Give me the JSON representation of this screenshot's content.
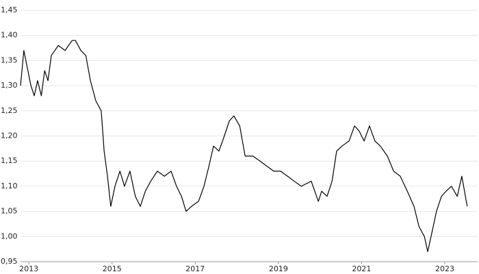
{
  "chart_data": {
    "type": "line",
    "x": [
      2012.8,
      2012.88,
      2013.05,
      2013.13,
      2013.21,
      2013.3,
      2013.38,
      2013.46,
      2013.54,
      2013.71,
      2013.87,
      2014.04,
      2014.12,
      2014.25,
      2014.37,
      2014.48,
      2014.61,
      2014.74,
      2014.81,
      2014.89,
      2014.97,
      2015.07,
      2015.19,
      2015.3,
      2015.43,
      2015.56,
      2015.68,
      2015.8,
      2015.93,
      2016.09,
      2016.26,
      2016.42,
      2016.55,
      2016.67,
      2016.78,
      2016.91,
      2017.08,
      2017.21,
      2017.33,
      2017.44,
      2017.57,
      2017.7,
      2017.82,
      2017.93,
      2018.07,
      2018.2,
      2018.39,
      2018.56,
      2018.72,
      2018.89,
      2019.05,
      2019.22,
      2019.38,
      2019.55,
      2019.79,
      2019.96,
      2020.04,
      2020.17,
      2020.29,
      2020.4,
      2020.53,
      2020.7,
      2020.83,
      2020.94,
      2021.06,
      2021.19,
      2021.32,
      2021.45,
      2021.62,
      2021.77,
      2021.93,
      2022.1,
      2022.26,
      2022.38,
      2022.51,
      2022.59,
      2022.67,
      2022.8,
      2022.92,
      2023.03,
      2023.16,
      2023.3,
      2023.41,
      2023.54
    ],
    "values": [
      1.3,
      1.37,
      1.3,
      1.28,
      1.31,
      1.28,
      1.33,
      1.31,
      1.36,
      1.38,
      1.37,
      1.39,
      1.39,
      1.37,
      1.36,
      1.31,
      1.27,
      1.25,
      1.17,
      1.12,
      1.06,
      1.1,
      1.13,
      1.1,
      1.13,
      1.08,
      1.06,
      1.09,
      1.11,
      1.13,
      1.12,
      1.13,
      1.1,
      1.08,
      1.05,
      1.06,
      1.07,
      1.1,
      1.14,
      1.18,
      1.17,
      1.2,
      1.23,
      1.24,
      1.22,
      1.16,
      1.16,
      1.15,
      1.14,
      1.13,
      1.13,
      1.12,
      1.11,
      1.1,
      1.11,
      1.07,
      1.09,
      1.08,
      1.11,
      1.17,
      1.18,
      1.19,
      1.22,
      1.21,
      1.19,
      1.22,
      1.19,
      1.18,
      1.16,
      1.13,
      1.12,
      1.09,
      1.06,
      1.02,
      1.0,
      0.97,
      1.0,
      1.05,
      1.08,
      1.09,
      1.1,
      1.08,
      1.12,
      1.06
    ],
    "color": "#000000",
    "xlim": [
      2012.8,
      2023.79
    ],
    "xticks": [
      2013,
      2015,
      2017,
      2019,
      2021,
      2023
    ],
    "ylim": [
      0.95,
      1.45
    ],
    "yticks": [
      {
        "value": 0.95,
        "label": "0,95"
      },
      {
        "value": 1.0,
        "label": "1,00"
      },
      {
        "value": 1.05,
        "label": "1,05"
      },
      {
        "value": 1.1,
        "label": "1,10"
      },
      {
        "value": 1.15,
        "label": "1,15"
      },
      {
        "value": 1.2,
        "label": "1,20"
      },
      {
        "value": 1.25,
        "label": "1,25"
      },
      {
        "value": 1.3,
        "label": "1,30"
      },
      {
        "value": 1.35,
        "label": "1,35"
      },
      {
        "value": 1.4,
        "label": "1,40"
      },
      {
        "value": 1.45,
        "label": "1,45"
      }
    ],
    "grid": true
  }
}
